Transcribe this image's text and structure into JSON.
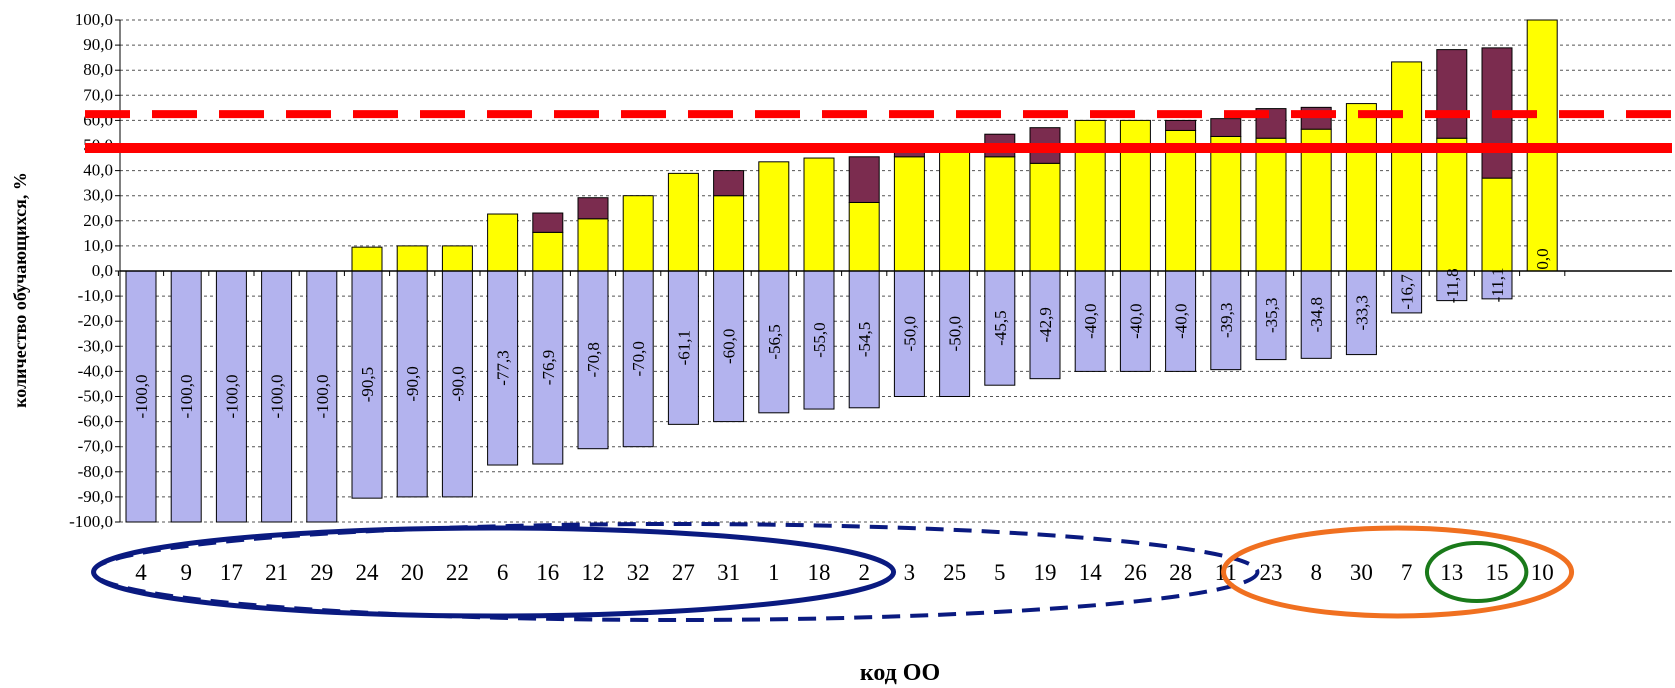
{
  "chart_data": {
    "type": "bar",
    "xlabel": "код ОО",
    "ylabel": "количество обучающихся, %",
    "ylim": [
      -100,
      100
    ],
    "yticks": [
      "-100,0",
      "-90,0",
      "-80,0",
      "-70,0",
      "-60,0",
      "-50,0",
      "-40,0",
      "-30,0",
      "-20,0",
      "-10,0",
      "0,0",
      "10,0",
      "20,0",
      "30,0",
      "40,0",
      "50,0",
      "60,0",
      "70,0",
      "80,0",
      "90,0",
      "100,0"
    ],
    "grid": true,
    "categories": [
      "4",
      "9",
      "17",
      "21",
      "29",
      "24",
      "20",
      "22",
      "6",
      "16",
      "12",
      "32",
      "27",
      "31",
      "1",
      "18",
      "2",
      "3",
      "25",
      "5",
      "19",
      "14",
      "26",
      "28",
      "11",
      "23",
      "8",
      "30",
      "7",
      "13",
      "15",
      "10"
    ],
    "series": [
      {
        "values": [
          0,
          0,
          0,
          0,
          0,
          9.5,
          10,
          10,
          22.7,
          15.4,
          20.8,
          30,
          38.9,
          30,
          43.5,
          45,
          27.3,
          45.5,
          50,
          45.5,
          42.9,
          60,
          60,
          56,
          53.6,
          52.9,
          56.5,
          66.7,
          83.3,
          52.9,
          37,
          100
        ],
        "color": "#ffff00"
      },
      {
        "values": [
          0,
          0,
          0,
          0,
          0,
          0,
          0,
          0,
          0,
          7.7,
          8.4,
          0,
          0,
          10,
          0,
          0,
          18.2,
          2,
          0,
          9,
          14.2,
          0,
          0,
          4,
          7.1,
          11.8,
          8.7,
          0,
          0,
          35.3,
          51.9,
          0
        ],
        "color": "#7b2c4f"
      },
      {
        "values": [
          -100,
          -100,
          -100,
          -100,
          -100,
          -90.5,
          -90,
          -90,
          -77.3,
          -76.9,
          -70.8,
          -70,
          -61.1,
          -60,
          -56.5,
          -55,
          -54.5,
          -50,
          -50,
          -45.5,
          -42.9,
          -40,
          -40,
          -40,
          -39.3,
          -35.3,
          -34.8,
          -33.3,
          -16.7,
          -11.8,
          -11.1,
          0
        ],
        "color": "#b3b3ee"
      }
    ],
    "data_labels": [
      "-100,0",
      "-100,0",
      "-100,0",
      "-100,0",
      "-100,0",
      "-90,5",
      "-90,0",
      "-90,0",
      "-77,3",
      "-76,9",
      "-70,8",
      "-70,0",
      "-61,1",
      "-60,0",
      "-56,5",
      "-55,0",
      "-54,5",
      "-50,0",
      "-50,0",
      "-45,5",
      "-42,9",
      "-40,0",
      "-40,0",
      "-40,0",
      "-39,3",
      "-35,3",
      "-34,8",
      "-33,3",
      "-16,7",
      "-11,8",
      "-11,1",
      "0,0"
    ],
    "reference_lines": [
      {
        "value": 49,
        "style": "solid",
        "color": "#ff0000"
      },
      {
        "value": 62.5,
        "style": "dashed",
        "color": "#ff0000"
      }
    ],
    "groupings": [
      {
        "from": "4",
        "to": "2",
        "style": "solid",
        "color": "#0a1a80"
      },
      {
        "from": "4",
        "to": "11",
        "style": "dashed",
        "color": "#0a1a80"
      },
      {
        "from": "23",
        "to": "10",
        "style": "solid",
        "color": "#f07020"
      },
      {
        "from": "13",
        "to": "15",
        "style": "solid",
        "color": "#1a7a1a"
      }
    ]
  }
}
